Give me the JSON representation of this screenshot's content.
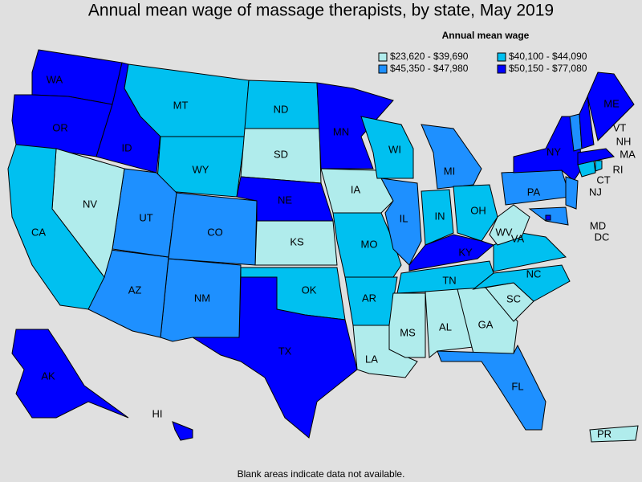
{
  "title": "Annual mean wage of massage therapists, by state, May 2019",
  "legend": {
    "title": "Annual mean wage",
    "bins": [
      {
        "label": "$23,620 - $39,690",
        "color": "#b0ecec"
      },
      {
        "label": "$40,100 - $44,090",
        "color": "#00c0f0"
      },
      {
        "label": "$45,350 - $47,980",
        "color": "#1e90ff"
      },
      {
        "label": "$50,150 - $77,080",
        "color": "#0000ff"
      }
    ]
  },
  "states": [
    {
      "label": "WA",
      "color": "#0000ff"
    },
    {
      "label": "OR",
      "color": "#0000ff"
    },
    {
      "label": "ID",
      "color": "#0000ff"
    },
    {
      "label": "MT",
      "color": "#00c0f0"
    },
    {
      "label": "WY",
      "color": "#00c0f0"
    },
    {
      "label": "ND",
      "color": "#00c0f0"
    },
    {
      "label": "SD",
      "color": "#b0ecec"
    },
    {
      "label": "NE",
      "color": "#0000ff"
    },
    {
      "label": "KS",
      "color": "#b0ecec"
    },
    {
      "label": "OK",
      "color": "#00c0f0"
    },
    {
      "label": "TX",
      "color": "#0000ff"
    },
    {
      "label": "NM",
      "color": "#1e90ff"
    },
    {
      "label": "AZ",
      "color": "#1e90ff"
    },
    {
      "label": "UT",
      "color": "#1e90ff"
    },
    {
      "label": "CO",
      "color": "#1e90ff"
    },
    {
      "label": "NV",
      "color": "#b0ecec"
    },
    {
      "label": "CA",
      "color": "#00c0f0"
    },
    {
      "label": "MN",
      "color": "#0000ff"
    },
    {
      "label": "IA",
      "color": "#b0ecec"
    },
    {
      "label": "MO",
      "color": "#00c0f0"
    },
    {
      "label": "AR",
      "color": "#00c0f0"
    },
    {
      "label": "LA",
      "color": "#b0ecec"
    },
    {
      "label": "WI",
      "color": "#00c0f0"
    },
    {
      "label": "IL",
      "color": "#1e90ff"
    },
    {
      "label": "MI",
      "color": "#1e90ff"
    },
    {
      "label": "IN",
      "color": "#00c0f0"
    },
    {
      "label": "OH",
      "color": "#00c0f0"
    },
    {
      "label": "KY",
      "color": "#0000ff"
    },
    {
      "label": "TN",
      "color": "#00c0f0"
    },
    {
      "label": "MS",
      "color": "#b0ecec"
    },
    {
      "label": "AL",
      "color": "#b0ecec"
    },
    {
      "label": "GA",
      "color": "#b0ecec"
    },
    {
      "label": "FL",
      "color": "#1e90ff"
    },
    {
      "label": "SC",
      "color": "#b0ecec"
    },
    {
      "label": "NC",
      "color": "#00c0f0"
    },
    {
      "label": "VA",
      "color": "#00c0f0"
    },
    {
      "label": "WV",
      "color": "#b0ecec"
    },
    {
      "label": "PA",
      "color": "#1e90ff"
    },
    {
      "label": "NY",
      "color": "#0000ff"
    },
    {
      "label": "NJ",
      "color": "#1e90ff"
    },
    {
      "label": "MD",
      "color": "#1e90ff"
    },
    {
      "label": "DC",
      "color": "#0000ff"
    },
    {
      "label": "CT",
      "color": "#00c0f0"
    },
    {
      "label": "RI",
      "color": "#00c0f0"
    },
    {
      "label": "MA",
      "color": "#0000ff"
    },
    {
      "label": "VT",
      "color": "#1e90ff"
    },
    {
      "label": "NH",
      "color": "#0000ff"
    },
    {
      "label": "ME",
      "color": "#0000ff"
    },
    {
      "label": "AK",
      "color": "#0000ff"
    },
    {
      "label": "HI",
      "color": "#0000ff"
    },
    {
      "label": "PR",
      "color": "#b0ecec"
    }
  ],
  "footnote": "Blank areas indicate data not available."
}
